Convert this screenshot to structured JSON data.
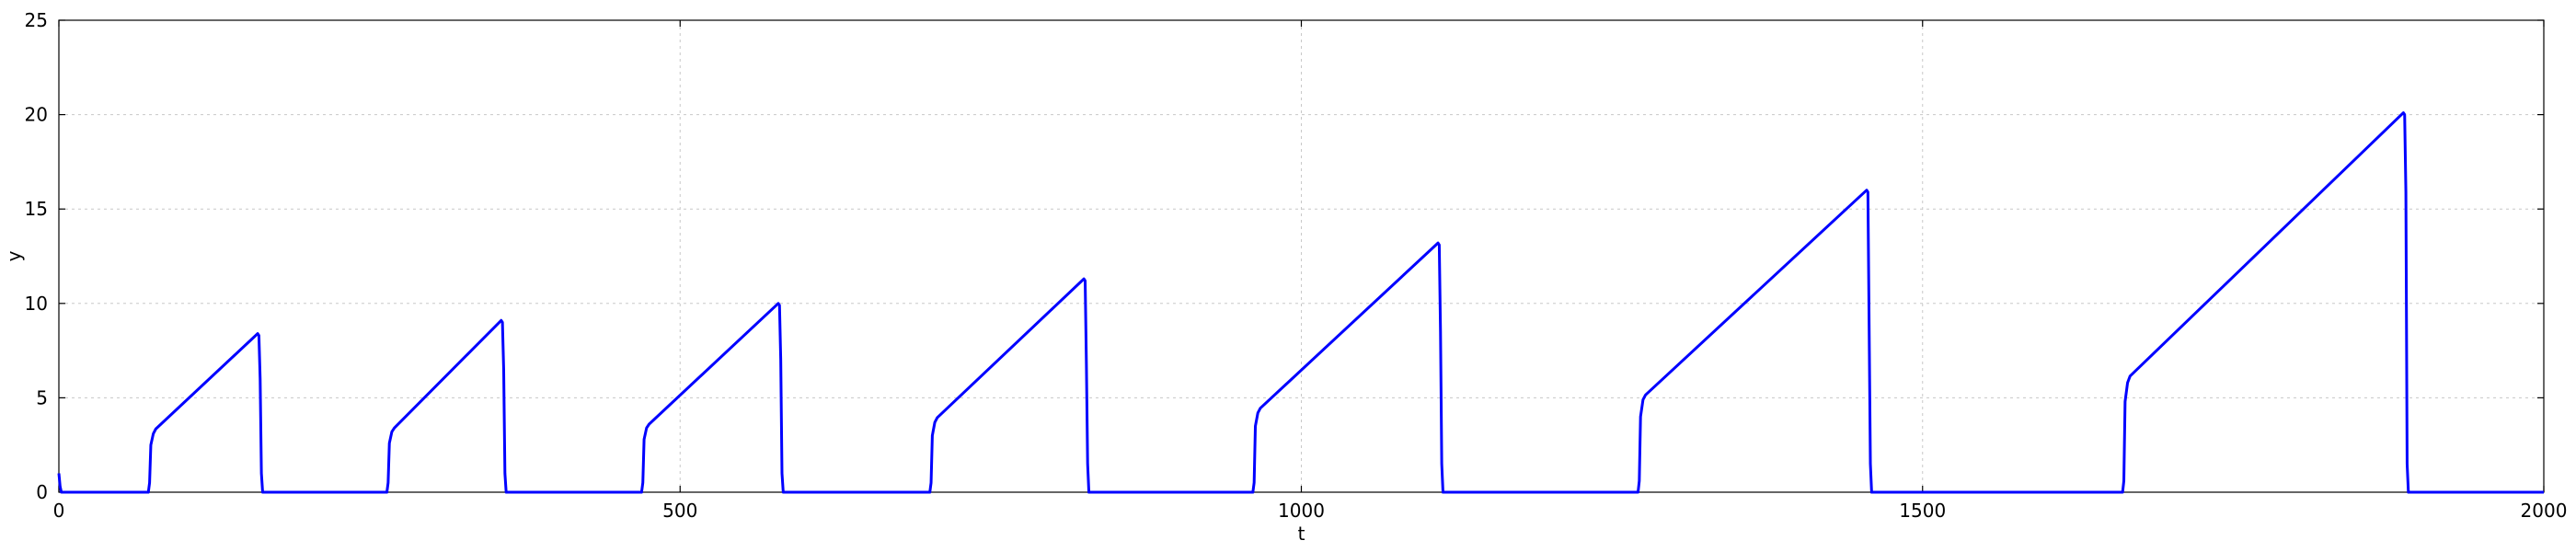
{
  "chart_data": {
    "type": "line",
    "title": "",
    "xlabel": "t",
    "ylabel": "y",
    "xlim": [
      0,
      2000
    ],
    "ylim": [
      0,
      25
    ],
    "xticks": [
      0,
      500,
      1000,
      1500,
      2000
    ],
    "xtick_labels": [
      "0",
      "500",
      "1000",
      "1500",
      "2000"
    ],
    "yticks": [
      0,
      5,
      10,
      15,
      20,
      25
    ],
    "ytick_labels": [
      "0",
      "5",
      "10",
      "15",
      "20",
      "25"
    ],
    "grid": true,
    "legend": "none",
    "series": [
      {
        "color": "#0000ff",
        "points": [
          [
            0,
            1.0
          ],
          [
            1,
            0.3
          ],
          [
            2,
            0
          ],
          [
            72,
            0
          ],
          [
            73,
            0.5
          ],
          [
            74,
            2.5
          ],
          [
            76,
            3.1
          ],
          [
            78,
            3.35
          ],
          [
            160,
            8.4
          ],
          [
            161,
            8.3
          ],
          [
            162,
            6.0
          ],
          [
            163,
            1.0
          ],
          [
            164,
            0
          ],
          [
            264,
            0
          ],
          [
            265,
            0.5
          ],
          [
            266,
            2.6
          ],
          [
            268,
            3.2
          ],
          [
            270,
            3.4
          ],
          [
            356,
            9.1
          ],
          [
            357,
            9.0
          ],
          [
            358,
            6.5
          ],
          [
            359,
            1.0
          ],
          [
            360,
            0
          ],
          [
            469,
            0
          ],
          [
            470,
            0.5
          ],
          [
            471,
            2.8
          ],
          [
            473,
            3.4
          ],
          [
            475,
            3.6
          ],
          [
            579,
            10.0
          ],
          [
            580,
            9.9
          ],
          [
            581,
            7.0
          ],
          [
            582,
            1.0
          ],
          [
            583,
            0
          ],
          [
            701,
            0
          ],
          [
            702,
            0.5
          ],
          [
            703,
            3.0
          ],
          [
            705,
            3.7
          ],
          [
            707,
            3.95
          ],
          [
            825,
            11.3
          ],
          [
            826,
            11.2
          ],
          [
            827,
            6.8
          ],
          [
            828,
            1.5
          ],
          [
            829,
            0
          ],
          [
            961,
            0
          ],
          [
            962,
            0.5
          ],
          [
            963,
            3.5
          ],
          [
            965,
            4.2
          ],
          [
            967,
            4.45
          ],
          [
            1110,
            13.2
          ],
          [
            1111,
            13.1
          ],
          [
            1112,
            8.5
          ],
          [
            1113,
            1.5
          ],
          [
            1114,
            0
          ],
          [
            1271,
            0
          ],
          [
            1272,
            0.6
          ],
          [
            1273,
            4.0
          ],
          [
            1275,
            4.9
          ],
          [
            1277,
            5.15
          ],
          [
            1455,
            16.0
          ],
          [
            1456,
            15.9
          ],
          [
            1457,
            8.7
          ],
          [
            1458,
            1.5
          ],
          [
            1459,
            0
          ],
          [
            1661,
            0
          ],
          [
            1662,
            0.6
          ],
          [
            1663,
            4.8
          ],
          [
            1665,
            5.8
          ],
          [
            1667,
            6.15
          ],
          [
            1887,
            20.1
          ],
          [
            1888,
            20.0
          ],
          [
            1889,
            15.9
          ],
          [
            1890,
            1.5
          ],
          [
            1891,
            0
          ],
          [
            2000,
            0
          ]
        ]
      }
    ]
  }
}
